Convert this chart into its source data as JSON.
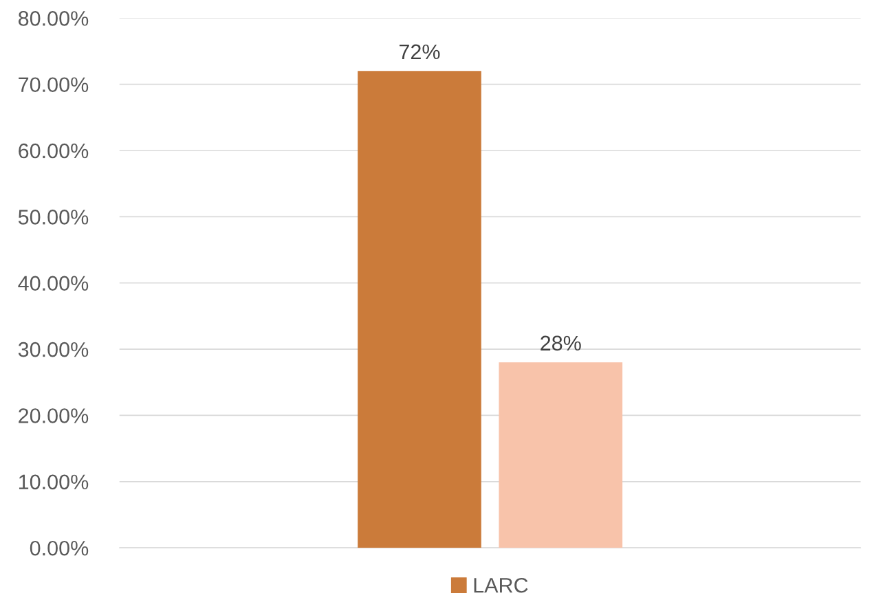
{
  "chart_data": {
    "type": "bar",
    "categories": [
      null
    ],
    "series": [
      {
        "name": "LARC",
        "color": "#cb7b3a",
        "values": [
          72
        ],
        "value_labels": [
          "72%"
        ]
      },
      {
        "color": "#f8c3aa",
        "values": [
          28
        ],
        "value_labels": [
          "28%"
        ]
      }
    ],
    "ylim": [
      0,
      80
    ],
    "yticks": [
      {
        "value": 0,
        "label": "0.00%"
      },
      {
        "value": 10,
        "label": "10.00%"
      },
      {
        "value": 20,
        "label": "20.00%"
      },
      {
        "value": 30,
        "label": "30.00%"
      },
      {
        "value": 40,
        "label": "40.00%"
      },
      {
        "value": 50,
        "label": "50.00%"
      },
      {
        "value": 60,
        "label": "60.00%"
      },
      {
        "value": 70,
        "label": "70.00%"
      },
      {
        "value": 80,
        "label": "80.00%"
      }
    ],
    "grid": "y",
    "legend": "bottom"
  }
}
